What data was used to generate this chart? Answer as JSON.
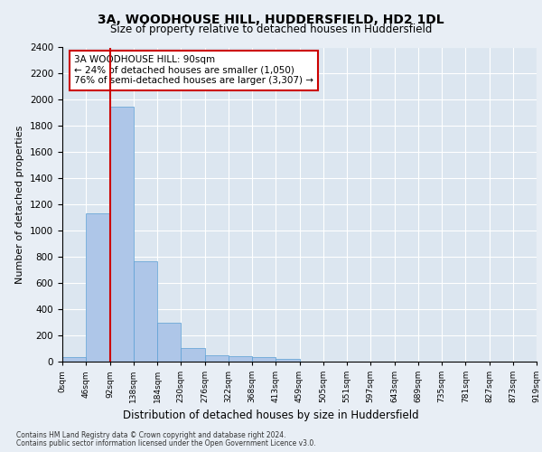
{
  "title1": "3A, WOODHOUSE HILL, HUDDERSFIELD, HD2 1DL",
  "title2": "Size of property relative to detached houses in Huddersfield",
  "xlabel": "Distribution of detached houses by size in Huddersfield",
  "ylabel": "Number of detached properties",
  "footnote1": "Contains HM Land Registry data © Crown copyright and database right 2024.",
  "footnote2": "Contains public sector information licensed under the Open Government Licence v3.0.",
  "bin_labels": [
    "0sqm",
    "46sqm",
    "92sqm",
    "138sqm",
    "184sqm",
    "230sqm",
    "276sqm",
    "322sqm",
    "368sqm",
    "413sqm",
    "459sqm",
    "505sqm",
    "551sqm",
    "597sqm",
    "643sqm",
    "689sqm",
    "735sqm",
    "781sqm",
    "827sqm",
    "873sqm",
    "919sqm"
  ],
  "bar_values": [
    35,
    1130,
    1950,
    770,
    300,
    105,
    48,
    42,
    32,
    18,
    0,
    0,
    0,
    0,
    0,
    0,
    0,
    0,
    0,
    0
  ],
  "bar_color": "#aec6e8",
  "bar_edge_color": "#5a9fd4",
  "ylim": [
    0,
    2400
  ],
  "yticks": [
    0,
    200,
    400,
    600,
    800,
    1000,
    1200,
    1400,
    1600,
    1800,
    2000,
    2200,
    2400
  ],
  "red_line_x": 2,
  "annotation_text_line1": "3A WOODHOUSE HILL: 90sqm",
  "annotation_text_line2": "← 24% of detached houses are smaller (1,050)",
  "annotation_text_line3": "76% of semi-detached houses are larger (3,307) →",
  "background_color": "#e8eef5",
  "plot_background": "#dce6f0",
  "grid_color": "#ffffff"
}
